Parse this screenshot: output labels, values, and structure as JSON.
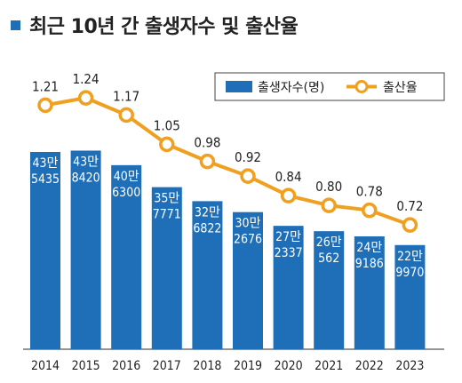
{
  "title": "최근 10년 간 출생자수 및 출산율",
  "colors": {
    "bar": "#1f6fb8",
    "line": "#f0a020",
    "axis": "#555555",
    "title_marker": "#1f6fb8"
  },
  "legend": {
    "bar_label": "출생자수(명)",
    "line_label": "출산율"
  },
  "chart_data": {
    "type": "bar+line",
    "title": "최근 10년 간 출생자수 및 출산율",
    "categories": [
      "2014",
      "2015",
      "2016",
      "2017",
      "2018",
      "2019",
      "2020",
      "2021",
      "2022",
      "2023"
    ],
    "series": [
      {
        "name": "출생자수(명)",
        "type": "bar",
        "values": [
          435435,
          438420,
          406300,
          357771,
          326822,
          302676,
          272337,
          260562,
          249186,
          229970
        ],
        "labels_man": [
          "43만",
          "43만",
          "40만",
          "35만",
          "32만",
          "30만",
          "27만",
          "26만",
          "24만",
          "22만"
        ],
        "labels_rest": [
          "5435",
          "8420",
          "6300",
          "7771",
          "6822",
          "2676",
          "2337",
          "562",
          "9186",
          "9970"
        ]
      },
      {
        "name": "출산율",
        "type": "line",
        "values": [
          1.21,
          1.24,
          1.17,
          1.05,
          0.98,
          0.92,
          0.84,
          0.8,
          0.78,
          0.72
        ],
        "labels": [
          "1.21",
          "1.24",
          "1.17",
          "1.05",
          "0.98",
          "0.92",
          "0.84",
          "0.80",
          "0.78",
          "0.72"
        ]
      }
    ],
    "legend_position": "top-right",
    "grid": false
  }
}
